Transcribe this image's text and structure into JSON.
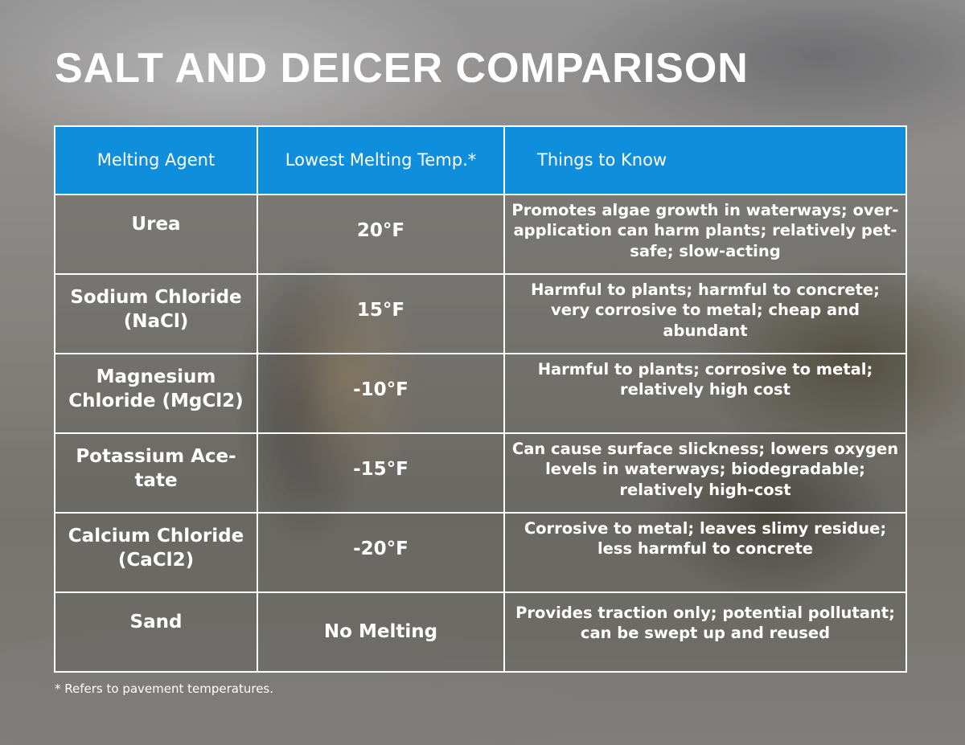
{
  "title": "SALT AND DEICER COMPARISON",
  "table": {
    "headers": [
      "Melting Agent",
      "Lowest Melting Temp.*",
      "Things to Know"
    ],
    "rows": [
      {
        "agent": "Urea",
        "temp": "20°F",
        "notes": "Promotes algae growth in waterways; over-application can harm plants; relatively pet-safe; slow-acting"
      },
      {
        "agent": "Sodium Chloride (NaCl)",
        "temp": "15°F",
        "notes": "Harmful to plants; harmful to concrete; very corrosive to metal; cheap and abundant"
      },
      {
        "agent": "Magnesium Chloride (MgCl2)",
        "temp": "-10°F",
        "notes": "Harmful to plants; corrosive to metal; relatively high cost"
      },
      {
        "agent": "Potassium Ace-tate",
        "temp": "-15°F",
        "notes": "Can cause surface slickness; lowers oxygen levels in waterways; biodegradable; relatively high-cost"
      },
      {
        "agent": "Calcium Chloride (CaCl2)",
        "temp": "-20°F",
        "notes": "Corrosive to metal; leaves slimy residue; less harmful to concrete"
      },
      {
        "agent": "Sand",
        "temp": "No Melting",
        "notes": "Provides traction only; potential pollutant; can be swept up and reused"
      }
    ]
  },
  "footnote": "* Refers to pavement temperatures.",
  "colors": {
    "header_blue": "#0f8edb",
    "text": "#ffffff",
    "border": "#ffffff"
  }
}
